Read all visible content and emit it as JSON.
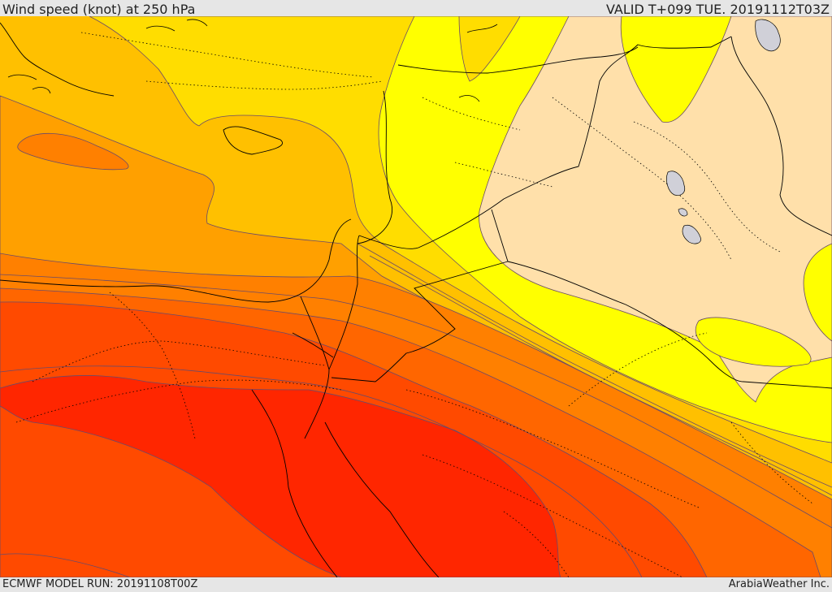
{
  "header": {
    "title": "Wind speed (knot) at 250 hPa",
    "valid_time": "VALID T+099 TUE. 20191112T03Z"
  },
  "footer": {
    "model_run": "ECMWF MODEL RUN: 20191108T00Z",
    "credit": "ArabiaWeather Inc."
  },
  "colors": {
    "very_light": "#ffe0aa",
    "light_yellow": "#ffff00",
    "yellow": "#ffdd00",
    "amber": "#ffc000",
    "orange_light": "#ffa000",
    "orange": "#ff8000",
    "orange_dark": "#ff6600",
    "red_orange": "#ff4a00",
    "red": "#ff2600",
    "contour": "#6a4a6a",
    "border": "#000000",
    "lake": "#d0d0d8"
  }
}
